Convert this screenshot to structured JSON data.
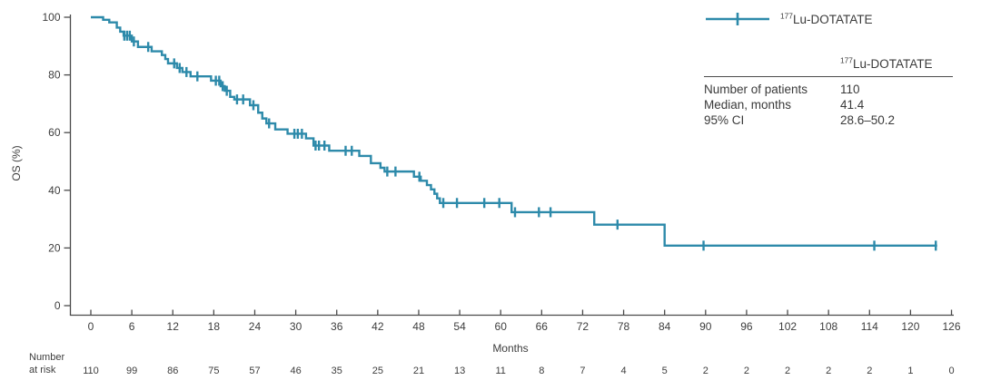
{
  "treatment": {
    "isotope": "177",
    "name": "Lu-DOTATATE"
  },
  "colors": {
    "curve": "#2d8aaa",
    "axis": "#4a4a4a",
    "text": "#3d3d3d"
  },
  "axes": {
    "ylabel": "OS (%)",
    "xlabel": "Months"
  },
  "risk_label": {
    "line1": "Number",
    "line2": "at risk"
  },
  "stats_table": {
    "rows": [
      {
        "label": "Number of patients",
        "value": "110"
      },
      {
        "label": "Median, months",
        "value": "41.4"
      },
      {
        "label": "95% CI",
        "value": "28.6–50.2"
      }
    ]
  },
  "chart_data": {
    "type": "line",
    "subtype": "kaplan-meier-step",
    "title": "",
    "xlabel": "Months",
    "ylabel": "OS (%)",
    "xlim": [
      0,
      126
    ],
    "ylim": [
      0,
      100
    ],
    "xticks": [
      0,
      6,
      12,
      18,
      24,
      30,
      36,
      42,
      48,
      54,
      60,
      66,
      72,
      78,
      84,
      90,
      96,
      102,
      108,
      114,
      120,
      126
    ],
    "yticks": [
      0,
      20,
      40,
      60,
      80,
      100
    ],
    "grid": false,
    "legend_position": "top-right",
    "series": [
      {
        "name": "177Lu-DOTATATE",
        "color": "#2d8aaa",
        "n_patients": 110,
        "median_months": 41.4,
        "ci_95": "28.6–50.2",
        "steps": [
          [
            0,
            100
          ],
          [
            1.8,
            99.1
          ],
          [
            2.7,
            98.2
          ],
          [
            3.8,
            96.4
          ],
          [
            4.3,
            95.0
          ],
          [
            4.8,
            93.6
          ],
          [
            6.0,
            91.6
          ],
          [
            6.9,
            89.7
          ],
          [
            8.9,
            88.2
          ],
          [
            10.4,
            86.9
          ],
          [
            10.9,
            85.5
          ],
          [
            11.3,
            84.0
          ],
          [
            12.6,
            82.4
          ],
          [
            13.4,
            81.0
          ],
          [
            14.6,
            79.5
          ],
          [
            17.6,
            78.0
          ],
          [
            19.0,
            76.1
          ],
          [
            19.6,
            74.5
          ],
          [
            20.4,
            72.4
          ],
          [
            21.0,
            71.5
          ],
          [
            23.3,
            69.5
          ],
          [
            24.5,
            66.9
          ],
          [
            25.1,
            64.9
          ],
          [
            25.7,
            63.2
          ],
          [
            27.0,
            61.1
          ],
          [
            28.8,
            59.6
          ],
          [
            31.5,
            58.0
          ],
          [
            32.6,
            55.5
          ],
          [
            34.9,
            53.7
          ],
          [
            39.3,
            51.9
          ],
          [
            41.0,
            49.4
          ],
          [
            42.4,
            47.8
          ],
          [
            43.0,
            46.5
          ],
          [
            47.3,
            44.7
          ],
          [
            48.3,
            43.3
          ],
          [
            49.2,
            41.8
          ],
          [
            49.8,
            40.3
          ],
          [
            50.3,
            38.8
          ],
          [
            50.7,
            37.2
          ],
          [
            51.1,
            35.6
          ],
          [
            61.6,
            32.4
          ],
          [
            73.7,
            28.1
          ],
          [
            84.0,
            20.8
          ]
        ],
        "censor_marks": [
          [
            4.9,
            93.6
          ],
          [
            5.3,
            93.6
          ],
          [
            5.7,
            93.6
          ],
          [
            6.3,
            91.6
          ],
          [
            8.4,
            89.7
          ],
          [
            12.2,
            84.0
          ],
          [
            13.0,
            82.4
          ],
          [
            14.0,
            81.0
          ],
          [
            15.6,
            79.5
          ],
          [
            18.3,
            78.0
          ],
          [
            18.8,
            78.0
          ],
          [
            19.3,
            76.1
          ],
          [
            19.9,
            74.5
          ],
          [
            21.4,
            71.5
          ],
          [
            22.3,
            71.5
          ],
          [
            23.8,
            69.5
          ],
          [
            26.1,
            63.2
          ],
          [
            29.8,
            59.6
          ],
          [
            30.3,
            59.6
          ],
          [
            30.9,
            59.6
          ],
          [
            32.9,
            55.5
          ],
          [
            33.4,
            55.5
          ],
          [
            34.2,
            55.5
          ],
          [
            37.3,
            53.7
          ],
          [
            38.2,
            53.7
          ],
          [
            43.4,
            46.5
          ],
          [
            44.6,
            46.5
          ],
          [
            48.1,
            44.7
          ],
          [
            51.6,
            35.6
          ],
          [
            53.6,
            35.6
          ],
          [
            57.6,
            35.6
          ],
          [
            59.8,
            35.6
          ],
          [
            62.1,
            32.4
          ],
          [
            65.6,
            32.4
          ],
          [
            67.3,
            32.4
          ],
          [
            77.1,
            28.1
          ],
          [
            89.7,
            20.8
          ],
          [
            114.7,
            20.8
          ],
          [
            123.7,
            20.8
          ]
        ],
        "end_time": 123.9,
        "number_at_risk": {
          "times": [
            0,
            6,
            12,
            18,
            24,
            30,
            36,
            42,
            48,
            54,
            60,
            66,
            72,
            78,
            84,
            90,
            96,
            102,
            108,
            114,
            120,
            126
          ],
          "counts": [
            110,
            99,
            86,
            75,
            57,
            46,
            35,
            25,
            21,
            13,
            11,
            8,
            7,
            4,
            5,
            2,
            2,
            2,
            2,
            2,
            1,
            0
          ]
        }
      }
    ]
  }
}
